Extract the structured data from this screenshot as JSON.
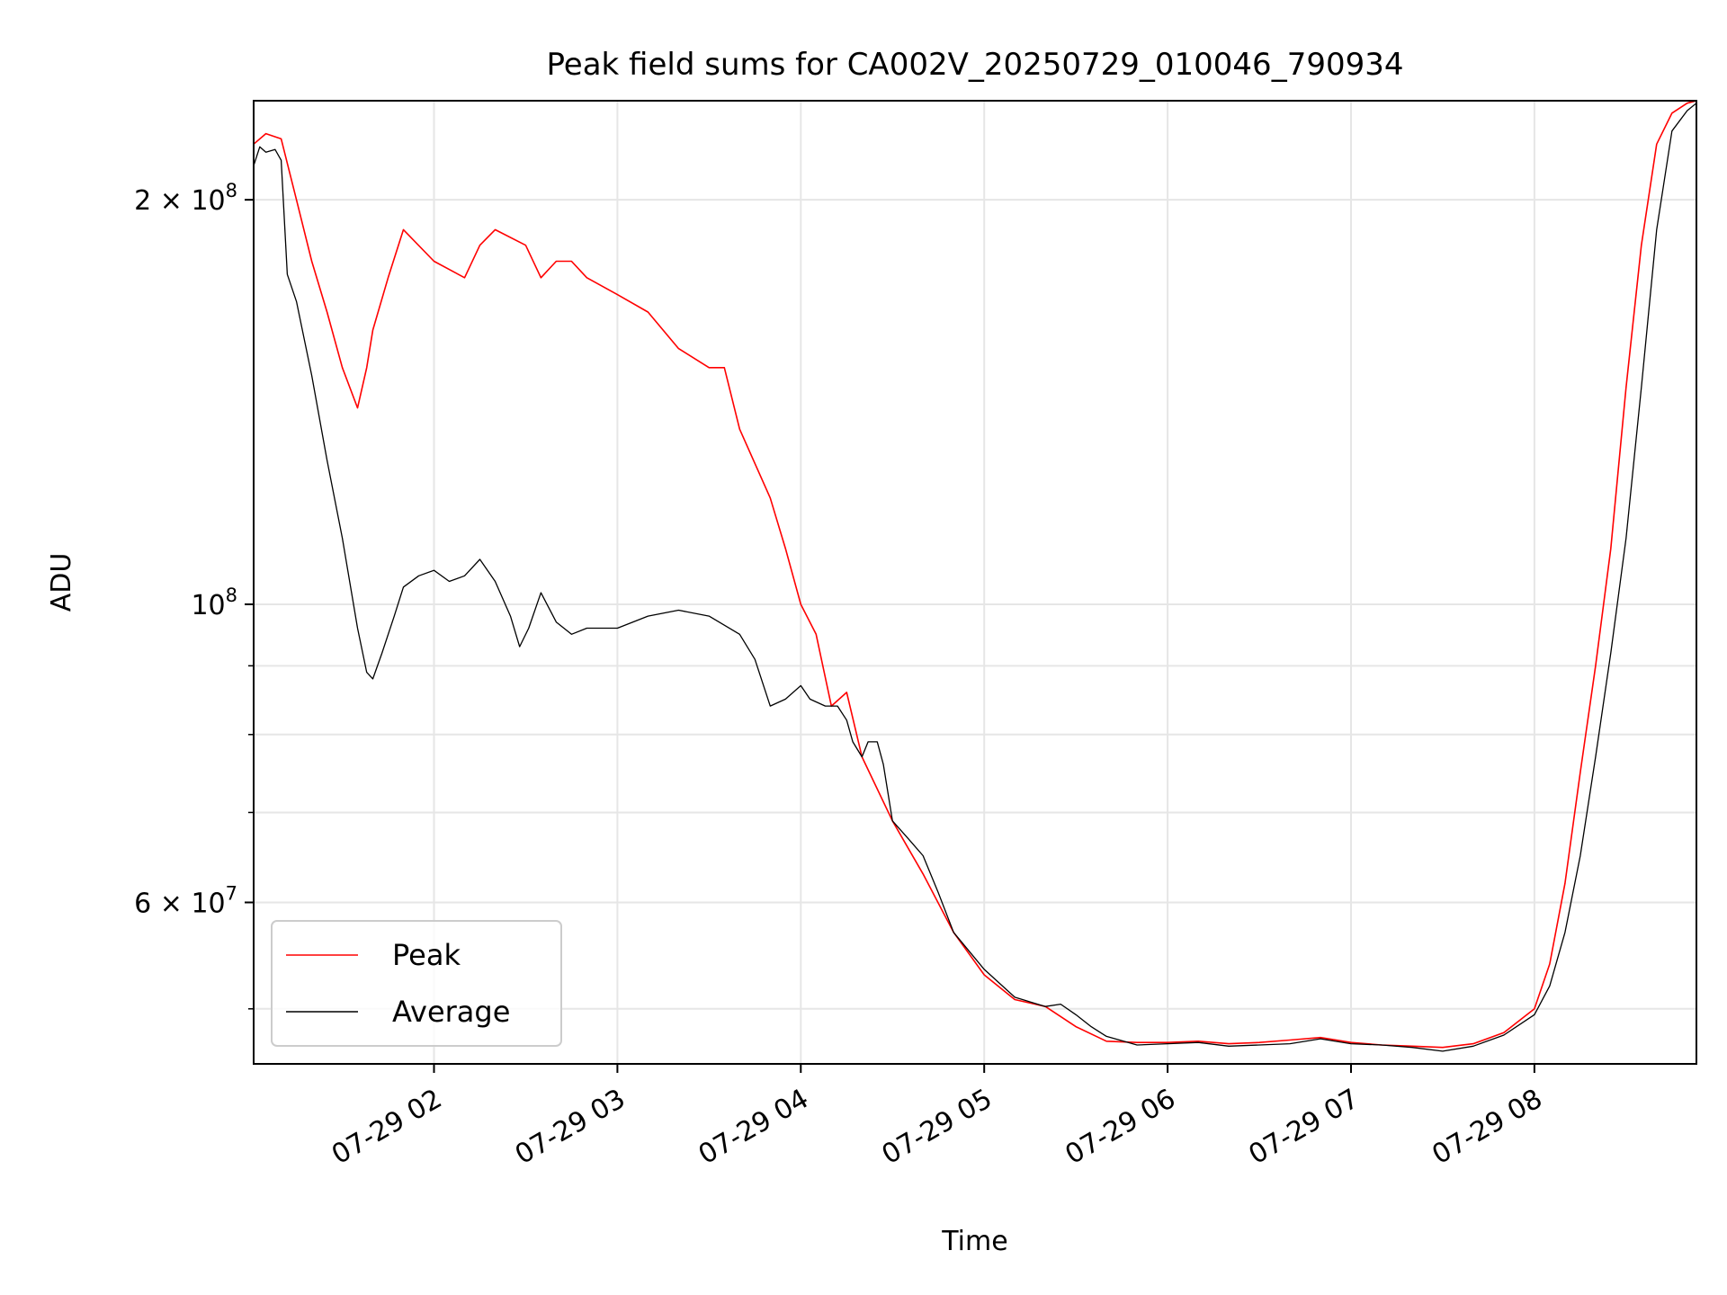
{
  "chart_data": {
    "type": "line",
    "title": "Peak field sums for CA002V_20250729_010046_790934",
    "xlabel": "Time",
    "ylabel": "ADU",
    "yscale": "log",
    "grid": true,
    "legend_placement": "lower-left",
    "xlim": [
      "07-29 01:01",
      "07-29 08:53"
    ],
    "ylim": [
      45500000,
      237000000
    ],
    "x_ticks": [
      {
        "value": "07-29 02:00",
        "label": "07-29 02"
      },
      {
        "value": "07-29 03:00",
        "label": "07-29 03"
      },
      {
        "value": "07-29 04:00",
        "label": "07-29 04"
      },
      {
        "value": "07-29 05:00",
        "label": "07-29 05"
      },
      {
        "value": "07-29 06:00",
        "label": "07-29 06"
      },
      {
        "value": "07-29 07:00",
        "label": "07-29 07"
      },
      {
        "value": "07-29 08:00",
        "label": "07-29 08"
      }
    ],
    "y_ticks_major": [
      {
        "value": 60000000,
        "mantissa": "6",
        "base": "10",
        "exp": "7"
      },
      {
        "value": 100000000,
        "mantissa": "",
        "base": "10",
        "exp": "8"
      },
      {
        "value": 200000000,
        "mantissa": "2",
        "base": "10",
        "exp": "8"
      }
    ],
    "y_ticks_minor": [
      50000000,
      70000000,
      80000000,
      90000000
    ],
    "series": [
      {
        "name": "Peak",
        "color": "#ff0000",
        "x": [
          "07-29 01:01",
          "07-29 01:05",
          "07-29 01:10",
          "07-29 01:15",
          "07-29 01:20",
          "07-29 01:25",
          "07-29 01:30",
          "07-29 01:35",
          "07-29 01:38",
          "07-29 01:40",
          "07-29 01:45",
          "07-29 01:50",
          "07-29 02:00",
          "07-29 02:10",
          "07-29 02:15",
          "07-29 02:20",
          "07-29 02:30",
          "07-29 02:35",
          "07-29 02:40",
          "07-29 02:45",
          "07-29 02:50",
          "07-29 03:00",
          "07-29 03:10",
          "07-29 03:20",
          "07-29 03:30",
          "07-29 03:35",
          "07-29 03:40",
          "07-29 03:50",
          "07-29 03:55",
          "07-29 04:00",
          "07-29 04:05",
          "07-29 04:10",
          "07-29 04:15",
          "07-29 04:20",
          "07-29 04:30",
          "07-29 04:40",
          "07-29 04:50",
          "07-29 05:00",
          "07-29 05:10",
          "07-29 05:20",
          "07-29 05:30",
          "07-29 05:40",
          "07-29 05:50",
          "07-29 06:00",
          "07-29 06:10",
          "07-29 06:20",
          "07-29 06:30",
          "07-29 06:40",
          "07-29 06:50",
          "07-29 07:00",
          "07-29 07:10",
          "07-29 07:20",
          "07-29 07:30",
          "07-29 07:40",
          "07-29 07:50",
          "07-29 08:00",
          "07-29 08:05",
          "07-29 08:10",
          "07-29 08:15",
          "07-29 08:20",
          "07-29 08:25",
          "07-29 08:30",
          "07-29 08:35",
          "07-29 08:40",
          "07-29 08:45",
          "07-29 08:50",
          "07-29 08:53"
        ],
        "y": [
          220000000,
          224000000,
          222000000,
          200000000,
          180000000,
          165000000,
          150000000,
          140000000,
          150000000,
          160000000,
          175000000,
          190000000,
          180000000,
          175000000,
          185000000,
          190000000,
          185000000,
          175000000,
          180000000,
          180000000,
          175000000,
          170000000,
          165000000,
          155000000,
          150000000,
          150000000,
          135000000,
          120000000,
          110000000,
          100000000,
          95000000,
          84000000,
          86000000,
          77000000,
          69000000,
          63000000,
          57000000,
          53000000,
          50800000,
          50200000,
          48500000,
          47300000,
          47200000,
          47200000,
          47300000,
          47100000,
          47200000,
          47400000,
          47600000,
          47200000,
          47000000,
          46900000,
          46800000,
          47100000,
          48000000,
          50000000,
          54000000,
          62000000,
          75000000,
          90000000,
          110000000,
          145000000,
          185000000,
          220000000,
          232000000,
          236000000,
          237000000
        ]
      },
      {
        "name": "Average",
        "color": "#000000",
        "x": [
          "07-29 01:01",
          "07-29 01:03",
          "07-29 01:05",
          "07-29 01:08",
          "07-29 01:10",
          "07-29 01:12",
          "07-29 01:15",
          "07-29 01:20",
          "07-29 01:25",
          "07-29 01:30",
          "07-29 01:35",
          "07-29 01:38",
          "07-29 01:40",
          "07-29 01:43",
          "07-29 01:47",
          "07-29 01:50",
          "07-29 01:55",
          "07-29 02:00",
          "07-29 02:05",
          "07-29 02:10",
          "07-29 02:15",
          "07-29 02:20",
          "07-29 02:25",
          "07-29 02:28",
          "07-29 02:31",
          "07-29 02:35",
          "07-29 02:40",
          "07-29 02:45",
          "07-29 02:50",
          "07-29 03:00",
          "07-29 03:10",
          "07-29 03:20",
          "07-29 03:30",
          "07-29 03:40",
          "07-29 03:45",
          "07-29 03:50",
          "07-29 03:55",
          "07-29 04:00",
          "07-29 04:03",
          "07-29 04:08",
          "07-29 04:12",
          "07-29 04:15",
          "07-29 04:17",
          "07-29 04:20",
          "07-29 04:22",
          "07-29 04:25",
          "07-29 04:27",
          "07-29 04:30",
          "07-29 04:35",
          "07-29 04:40",
          "07-29 04:45",
          "07-29 04:50",
          "07-29 05:00",
          "07-29 05:10",
          "07-29 05:20",
          "07-29 05:25",
          "07-29 05:30",
          "07-29 05:35",
          "07-29 05:40",
          "07-29 05:50",
          "07-29 06:00",
          "07-29 06:10",
          "07-29 06:20",
          "07-29 06:30",
          "07-29 06:40",
          "07-29 06:50",
          "07-29 07:00",
          "07-29 07:10",
          "07-29 07:20",
          "07-29 07:30",
          "07-29 07:40",
          "07-29 07:50",
          "07-29 08:00",
          "07-29 08:05",
          "07-29 08:10",
          "07-29 08:15",
          "07-29 08:20",
          "07-29 08:25",
          "07-29 08:30",
          "07-29 08:35",
          "07-29 08:40",
          "07-29 08:45",
          "07-29 08:50",
          "07-29 08:53"
        ],
        "y": [
          212000000,
          219000000,
          217000000,
          218000000,
          214000000,
          176000000,
          168000000,
          148000000,
          128000000,
          112000000,
          96000000,
          89000000,
          88000000,
          92000000,
          98000000,
          103000000,
          105000000,
          106000000,
          104000000,
          105000000,
          108000000,
          104000000,
          98000000,
          93000000,
          96000000,
          102000000,
          97000000,
          95000000,
          96000000,
          96000000,
          98000000,
          99000000,
          98000000,
          95000000,
          91000000,
          84000000,
          85000000,
          87000000,
          85000000,
          84000000,
          84000000,
          82000000,
          79000000,
          77000000,
          79000000,
          79000000,
          76000000,
          69000000,
          67000000,
          65000000,
          61000000,
          57000000,
          53500000,
          51000000,
          50200000,
          50400000,
          49500000,
          48500000,
          47700000,
          47000000,
          47100000,
          47200000,
          46900000,
          47000000,
          47100000,
          47500000,
          47100000,
          47000000,
          46800000,
          46500000,
          46900000,
          47800000,
          49500000,
          52000000,
          57000000,
          65000000,
          77000000,
          92000000,
          112000000,
          145000000,
          190000000,
          225000000,
          233000000,
          236000000
        ]
      }
    ]
  }
}
